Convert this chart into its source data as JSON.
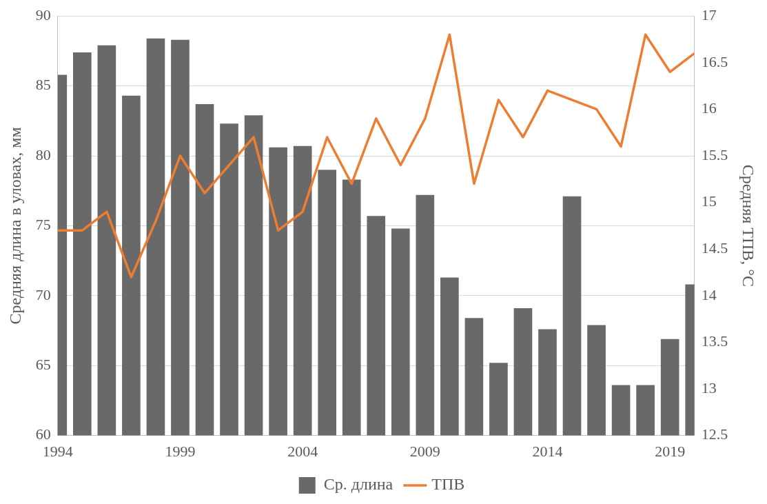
{
  "chart_data": {
    "type": "bar",
    "ylabel": "Средняя длина в уловах, мм",
    "y2label": "Средняя ТПВ, °С",
    "x": [
      1994,
      1995,
      1996,
      1997,
      1998,
      1999,
      2000,
      2001,
      2002,
      2003,
      2004,
      2005,
      2006,
      2007,
      2008,
      2009,
      2010,
      2011,
      2012,
      2013,
      2014,
      2015,
      2016,
      2017,
      2018,
      2019,
      2020
    ],
    "series": [
      {
        "name": "Ср. длина",
        "color": "#696969",
        "values": [
          85.8,
          87.4,
          87.9,
          84.3,
          88.4,
          88.3,
          83.7,
          82.3,
          82.9,
          80.6,
          80.7,
          79.0,
          78.3,
          75.7,
          74.8,
          77.2,
          71.3,
          68.4,
          65.2,
          69.1,
          67.6,
          77.1,
          67.9,
          63.6,
          63.6,
          66.9,
          70.8
        ]
      },
      {
        "name": "ТПВ",
        "type": "line",
        "axis": "y2",
        "color": "#ed7d31",
        "values": [
          14.7,
          14.7,
          14.9,
          14.2,
          14.8,
          15.5,
          15.1,
          15.4,
          15.7,
          14.7,
          14.9,
          15.7,
          15.2,
          15.9,
          15.4,
          15.9,
          16.8,
          15.2,
          16.1,
          15.7,
          16.2,
          16.1,
          16.0,
          15.6,
          16.8,
          16.4,
          16.6
        ]
      }
    ],
    "xlim": [
      1994,
      2020
    ],
    "xticks": [
      1994,
      1999,
      2004,
      2009,
      2014,
      2019
    ],
    "ylim": [
      60,
      90
    ],
    "yticks": [
      60,
      65,
      70,
      75,
      80,
      85,
      90
    ],
    "y2lim": [
      12.5,
      17
    ],
    "y2ticks": [
      12.5,
      13,
      13.5,
      14,
      14.5,
      15,
      15.5,
      16,
      16.5,
      17
    ],
    "grid": "y",
    "legend": "bottom",
    "marker": "none",
    "line_style": "solid"
  }
}
